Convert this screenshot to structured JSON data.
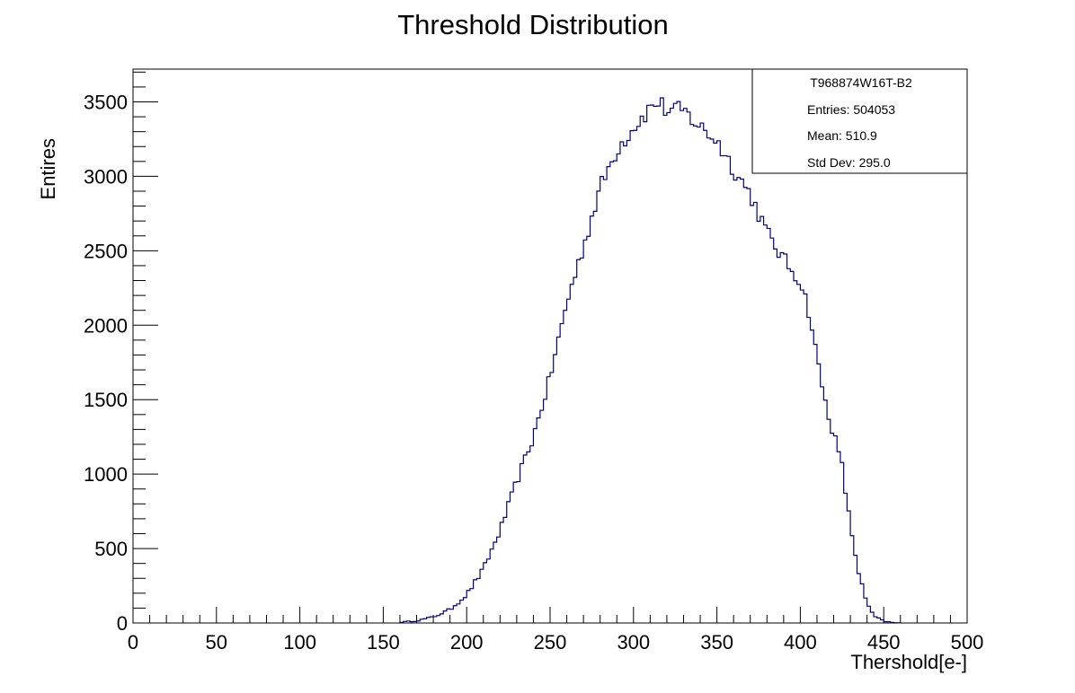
{
  "chart_data": {
    "type": "histogram",
    "title": "Threshold Distribution",
    "xlabel": "Thershold[e-]",
    "ylabel": "Entires",
    "xlim": [
      0,
      500
    ],
    "ylim": [
      0,
      3720
    ],
    "xticks": [
      "0",
      "50",
      "100",
      "150",
      "200",
      "250",
      "300",
      "350",
      "400",
      "450",
      "500"
    ],
    "yticks": [
      "0",
      "500",
      "1000",
      "1500",
      "2000",
      "2500",
      "3000",
      "3500"
    ],
    "grid": false,
    "line_color": "#000080",
    "stats_box": {
      "name": "T968874W16T-B2",
      "entries_label": "Entries: 504053",
      "mean_label": "Mean: 510.9",
      "stddev_label": "Std Dev: 295.0",
      "position": "top-right"
    },
    "series": [
      {
        "bin_width": 2,
        "x": [
          160,
          170,
          180,
          190,
          200,
          210,
          220,
          230,
          240,
          250,
          260,
          270,
          280,
          290,
          300,
          310,
          315,
          320,
          330,
          340,
          350,
          360,
          370,
          380,
          390,
          400,
          405,
          410,
          415,
          420,
          425,
          430,
          435,
          440,
          445,
          450,
          455,
          460
        ],
        "y": [
          5,
          15,
          40,
          90,
          190,
          360,
          620,
          950,
          1250,
          1650,
          2150,
          2530,
          2920,
          3180,
          3330,
          3460,
          3500,
          3440,
          3440,
          3330,
          3240,
          3050,
          2880,
          2620,
          2440,
          2300,
          2100,
          1780,
          1480,
          1270,
          1050,
          650,
          340,
          120,
          40,
          12,
          3,
          0
        ]
      }
    ]
  }
}
